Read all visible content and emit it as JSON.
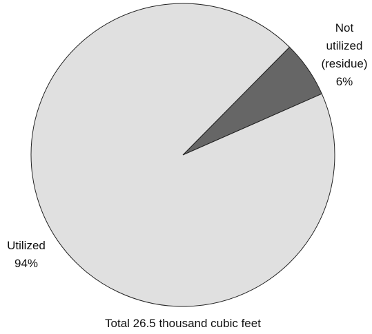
{
  "chart_data": {
    "type": "pie",
    "categories": [
      "Not utilized (residue)",
      "Utilized"
    ],
    "values": [
      6,
      94
    ],
    "value_labels": [
      "6%",
      "94%"
    ],
    "colors": [
      "#666666",
      "#e0e0e0"
    ],
    "annotation": "Total 26.5 thousand cubic feet"
  }
}
